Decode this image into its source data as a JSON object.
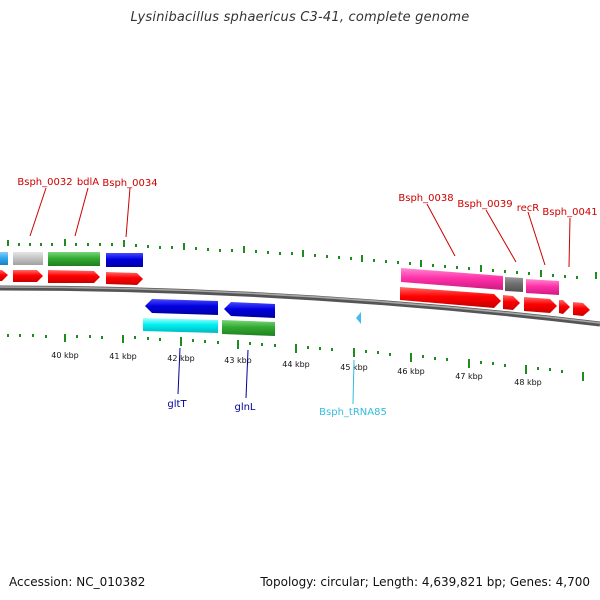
{
  "title": "Lysinibacillus sphaericus C3-41, complete genome",
  "footer": {
    "accession": "Accession: NC_010382",
    "stats": "Topology: circular; Length: 4,639,821 bp; Genes: 4,700"
  },
  "colors": {
    "backbone": "#7a7a7a",
    "ticks": "#1f8c1f",
    "label_red": "#cc0000",
    "label_blue": "#000099",
    "label_cyan": "#33bbdd"
  },
  "scale_labels": [
    "40 kbp",
    "41 kbp",
    "42 kbp",
    "43 kbp",
    "44 kbp",
    "45 kbp",
    "46 kbp",
    "47 kbp",
    "48 kbp"
  ],
  "top_labels": [
    "Bsph_0032",
    "bdlA",
    "Bsph_0034",
    "Bsph_0038",
    "Bsph_0039",
    "recR",
    "Bsph_0041"
  ],
  "bottom_labels": [
    "gltT",
    "glnL",
    "Bsph_tRNA85"
  ]
}
